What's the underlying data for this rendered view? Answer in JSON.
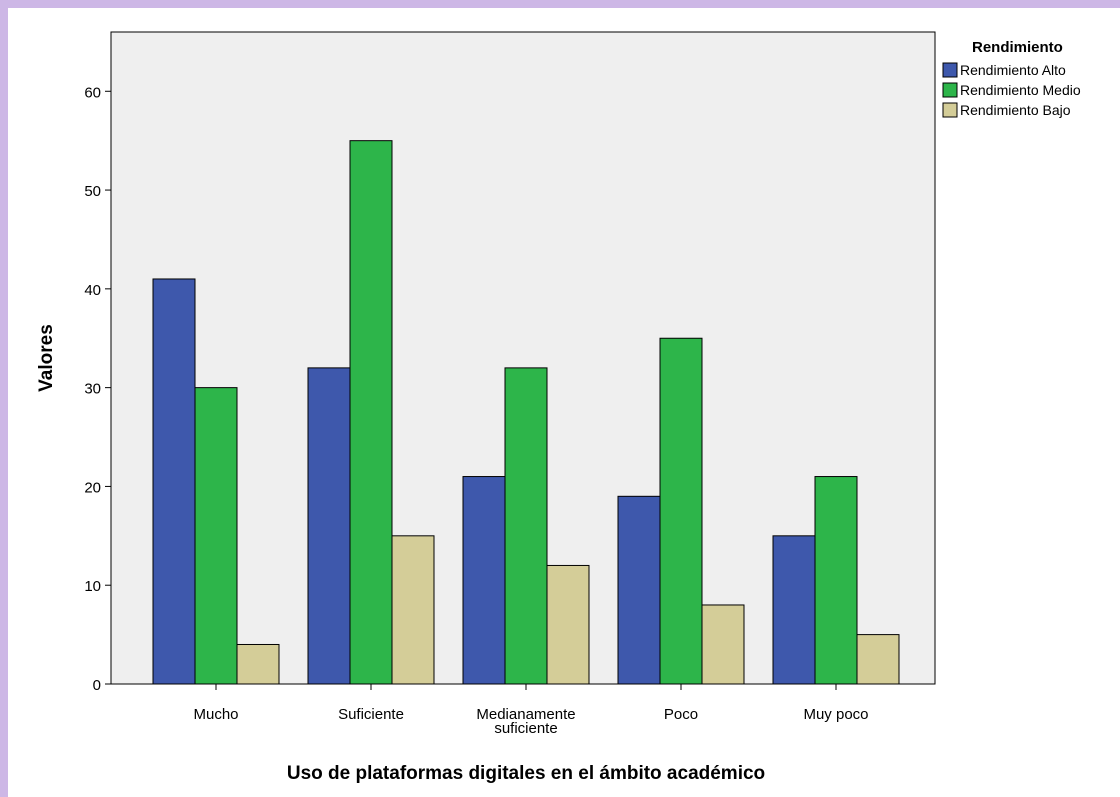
{
  "chart_data": {
    "type": "bar",
    "title": "",
    "xlabel": "Uso de plataformas digitales en el ámbito académico",
    "ylabel": "Valores",
    "ylim": [
      0,
      66
    ],
    "yticks": [
      0,
      10,
      20,
      30,
      40,
      50,
      60
    ],
    "grid": false,
    "legend_title": "Rendimiento",
    "legend_position": "top-right",
    "categories": [
      [
        "Mucho"
      ],
      [
        "Suficiente"
      ],
      [
        "Medianamente",
        "suficiente"
      ],
      [
        "Poco"
      ],
      [
        "Muy poco"
      ]
    ],
    "series": [
      {
        "name": "Rendimiento Alto",
        "color": "#3e58ac",
        "values": [
          41,
          32,
          21,
          19,
          15
        ]
      },
      {
        "name": "Rendimiento Medio",
        "color": "#2db54a",
        "values": [
          30,
          55,
          32,
          35,
          21
        ]
      },
      {
        "name": "Rendimiento Bajo",
        "color": "#d4cd98",
        "values": [
          4,
          15,
          12,
          8,
          5
        ]
      }
    ],
    "colors": {
      "plot_background": "#efefef",
      "frame_border": "#cdb7e6"
    }
  }
}
